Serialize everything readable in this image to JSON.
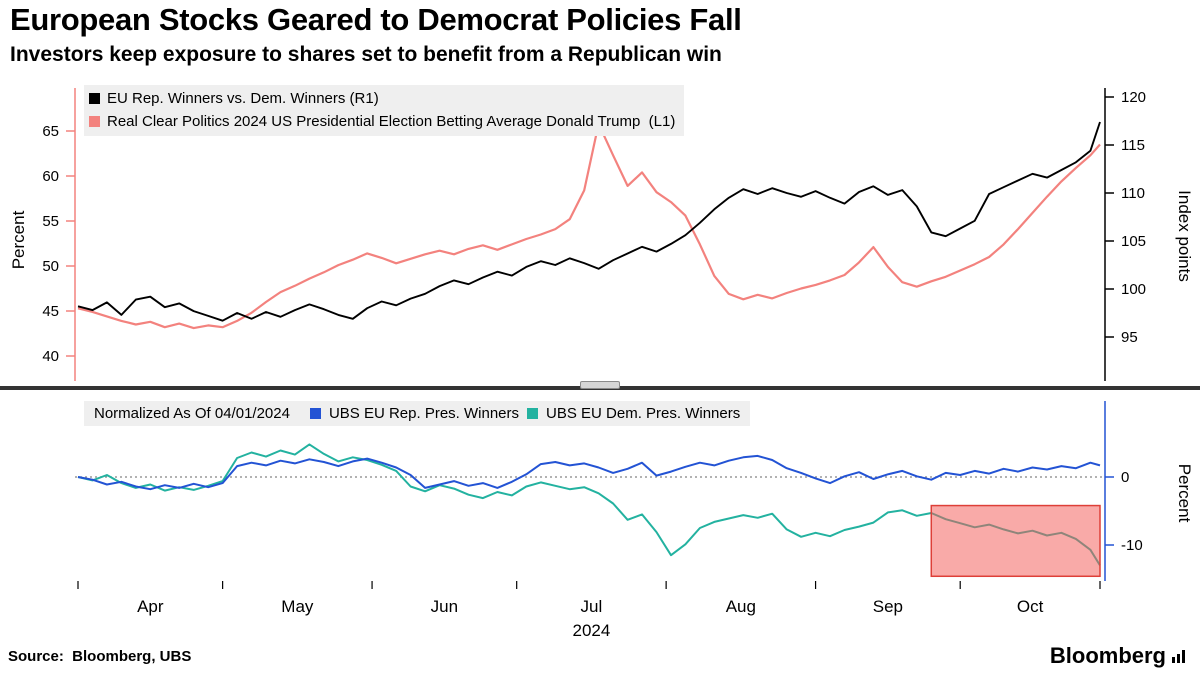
{
  "header": {
    "title": "European Stocks Geared to Democrat Policies Fall",
    "subtitle": "Investors keep exposure to shares set to benefit from a Republican win"
  },
  "footer": {
    "source": "Source:  Bloomberg, UBS",
    "brand": "Bloomberg"
  },
  "colors": {
    "black_series": "#000000",
    "red_series": "#f3827e",
    "blue_series": "#2353d4",
    "teal_series": "#23b2a0",
    "legend_bg": "#efefef",
    "zero_line": "#999999",
    "divider": "#333333",
    "highlight_fill": "rgba(244,92,88,0.52)",
    "highlight_border": "#de3f38"
  },
  "chart_data": [
    {
      "type": "line",
      "panel": "top",
      "x_unit": "days since 2024-04-01",
      "x_year": "2024",
      "x_tick_labels": [
        "Apr",
        "May",
        "Jun",
        "Jul",
        "Aug",
        "Sep",
        "Oct"
      ],
      "x_tick_days": [
        15,
        45.5,
        76,
        106.5,
        137.5,
        168,
        197.5
      ],
      "x_boundary_days": [
        0,
        30,
        61,
        91,
        122,
        153,
        183,
        212
      ],
      "x_range": [
        0,
        212
      ],
      "grid": false,
      "x": [
        0,
        3,
        6,
        9,
        12,
        15,
        18,
        21,
        24,
        27,
        30,
        33,
        36,
        39,
        42,
        45,
        48,
        51,
        54,
        57,
        60,
        63,
        66,
        69,
        72,
        75,
        78,
        81,
        84,
        87,
        90,
        93,
        96,
        99,
        102,
        105,
        108,
        111,
        114,
        117,
        120,
        123,
        126,
        129,
        132,
        135,
        138,
        141,
        144,
        147,
        150,
        153,
        156,
        159,
        162,
        165,
        168,
        171,
        174,
        177,
        180,
        183,
        186,
        189,
        192,
        195,
        198,
        201,
        204,
        207,
        210,
        212
      ],
      "left_axis": {
        "title": "Percent",
        "ticks": [
          40,
          45,
          50,
          55,
          60,
          65
        ],
        "range": [
          37,
          70
        ]
      },
      "right_axis": {
        "title": "Index points",
        "ticks": [
          95,
          100,
          105,
          110,
          115,
          120
        ],
        "range": [
          90,
          121
        ]
      },
      "series": [
        {
          "name": "EU Rep. Winners vs. Dem. Winners (R1)",
          "axis": "right",
          "color_key": "black_series",
          "y": [
            98.2,
            97.8,
            98.6,
            97.3,
            98.9,
            99.2,
            98.1,
            98.5,
            97.7,
            97.2,
            96.7,
            97.5,
            96.9,
            97.6,
            97.1,
            97.8,
            98.4,
            97.9,
            97.3,
            96.9,
            98.0,
            98.7,
            98.3,
            99.0,
            99.5,
            100.3,
            100.9,
            100.5,
            101.2,
            101.8,
            101.4,
            102.3,
            102.9,
            102.5,
            103.2,
            102.7,
            102.1,
            103.0,
            103.7,
            104.4,
            103.9,
            104.7,
            105.6,
            106.9,
            108.3,
            109.5,
            110.4,
            109.9,
            110.5,
            110.0,
            109.6,
            110.2,
            109.5,
            108.9,
            110.1,
            110.7,
            109.8,
            110.3,
            108.6,
            105.9,
            105.5,
            106.3,
            107.1,
            109.9,
            110.6,
            111.3,
            112.0,
            111.6,
            112.4,
            113.2,
            114.4,
            117.4
          ]
        },
        {
          "name": "Real Clear Politics 2024 US Presidential Election Betting Average Donald Trump  (L1)",
          "axis": "left",
          "color_key": "red_series",
          "y": [
            45.3,
            44.9,
            44.4,
            43.9,
            43.5,
            43.8,
            43.2,
            43.6,
            43.1,
            43.4,
            43.2,
            43.9,
            44.8,
            46.0,
            47.1,
            47.8,
            48.6,
            49.3,
            50.1,
            50.7,
            51.4,
            50.9,
            50.3,
            50.8,
            51.3,
            51.7,
            51.3,
            51.9,
            52.3,
            51.8,
            52.4,
            53.0,
            53.5,
            54.1,
            55.2,
            58.4,
            65.8,
            62.3,
            58.9,
            60.4,
            58.2,
            57.1,
            55.6,
            52.4,
            48.9,
            46.9,
            46.3,
            46.8,
            46.4,
            47.0,
            47.5,
            47.9,
            48.4,
            49.0,
            50.4,
            52.1,
            49.9,
            48.2,
            47.7,
            48.3,
            48.8,
            49.5,
            50.2,
            51.0,
            52.4,
            54.1,
            55.9,
            57.7,
            59.4,
            60.9,
            62.3,
            63.5
          ]
        }
      ]
    },
    {
      "type": "line",
      "panel": "bottom",
      "note": "Normalized As Of 04/01/2024",
      "x_unit": "days since 2024-04-01",
      "x": [
        0,
        3,
        6,
        9,
        12,
        15,
        18,
        21,
        24,
        27,
        30,
        33,
        36,
        39,
        42,
        45,
        48,
        51,
        54,
        57,
        60,
        63,
        66,
        69,
        72,
        75,
        78,
        81,
        84,
        87,
        90,
        93,
        96,
        99,
        102,
        105,
        108,
        111,
        114,
        117,
        120,
        123,
        126,
        129,
        132,
        135,
        138,
        141,
        144,
        147,
        150,
        153,
        156,
        159,
        162,
        165,
        168,
        171,
        174,
        177,
        180,
        183,
        186,
        189,
        192,
        195,
        198,
        201,
        204,
        207,
        210,
        212
      ],
      "right_axis": {
        "title": "Percent",
        "ticks": [
          0,
          -10
        ],
        "range": [
          -15,
          11
        ]
      },
      "zero_line": true,
      "highlight_box": {
        "x_start": 177,
        "x_end": 212,
        "y_top": -4.2,
        "y_bottom": -14.6
      },
      "series": [
        {
          "name": "UBS EU Rep. Pres. Winners",
          "axis": "right",
          "color_key": "blue_series",
          "y": [
            0.0,
            -0.4,
            -1.1,
            -0.7,
            -1.4,
            -1.8,
            -1.2,
            -1.6,
            -1.0,
            -1.5,
            -0.9,
            1.6,
            2.1,
            1.7,
            2.4,
            2.0,
            2.6,
            2.2,
            1.6,
            2.3,
            2.7,
            2.1,
            1.4,
            0.3,
            -1.6,
            -1.1,
            -0.6,
            -1.3,
            -0.9,
            -1.6,
            -0.7,
            0.4,
            1.9,
            2.2,
            1.7,
            2.0,
            1.4,
            0.6,
            1.2,
            2.1,
            0.2,
            0.8,
            1.5,
            2.1,
            1.7,
            2.4,
            2.9,
            3.1,
            2.5,
            1.3,
            0.6,
            -0.2,
            -0.9,
            0.1,
            0.7,
            -0.3,
            0.4,
            0.9,
            0.1,
            -0.4,
            0.6,
            0.3,
            0.9,
            0.5,
            1.2,
            0.8,
            1.4,
            1.1,
            1.6,
            1.3,
            2.1,
            1.7
          ]
        },
        {
          "name": "UBS EU Dem. Pres. Winners",
          "axis": "right",
          "color_key": "teal_series",
          "y": [
            0.0,
            -0.5,
            0.3,
            -0.9,
            -1.6,
            -1.1,
            -2.0,
            -1.5,
            -1.9,
            -1.3,
            -0.6,
            2.8,
            3.6,
            3.0,
            3.9,
            3.3,
            4.8,
            3.4,
            2.3,
            2.9,
            2.5,
            1.8,
            0.9,
            -1.4,
            -2.1,
            -1.2,
            -1.7,
            -2.6,
            -3.1,
            -2.2,
            -2.7,
            -1.4,
            -0.8,
            -1.3,
            -1.8,
            -1.5,
            -2.4,
            -3.9,
            -6.3,
            -5.5,
            -8.1,
            -11.5,
            -9.9,
            -7.5,
            -6.6,
            -6.1,
            -5.6,
            -6.0,
            -5.4,
            -7.7,
            -8.8,
            -8.2,
            -8.7,
            -7.8,
            -7.3,
            -6.7,
            -5.2,
            -4.9,
            -5.7,
            -5.3,
            -6.2,
            -6.8,
            -7.4,
            -7.0,
            -7.7,
            -8.3,
            -7.9,
            -8.6,
            -8.2,
            -9.1,
            -10.7,
            -13.0
          ]
        }
      ]
    }
  ]
}
